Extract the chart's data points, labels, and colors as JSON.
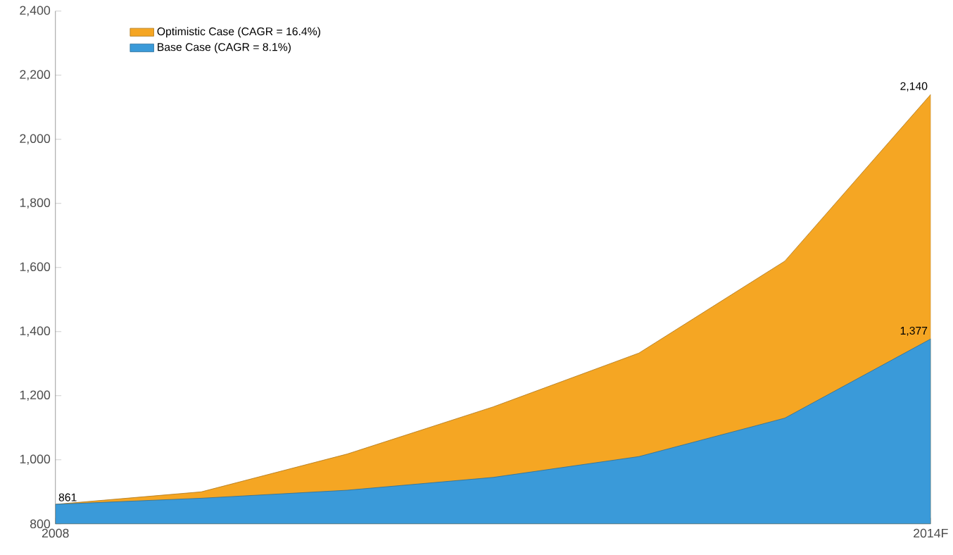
{
  "chart_data": {
    "type": "area",
    "x": [
      2008,
      2009,
      2010,
      2011,
      2012,
      2013,
      2014
    ],
    "xlim": [
      2008,
      2014
    ],
    "xticks": [
      {
        "value": 2008,
        "label": "2008"
      },
      {
        "value": 2014,
        "label": "2014F"
      }
    ],
    "ylim": [
      800,
      2400
    ],
    "yticks": [
      {
        "value": 800,
        "label": "800"
      },
      {
        "value": 1000,
        "label": "1,000"
      },
      {
        "value": 1200,
        "label": "1,200"
      },
      {
        "value": 1400,
        "label": "1,400"
      },
      {
        "value": 1600,
        "label": "1,600"
      },
      {
        "value": 1800,
        "label": "1,800"
      },
      {
        "value": 2000,
        "label": "2,000"
      },
      {
        "value": 2200,
        "label": "2,200"
      },
      {
        "value": 2400,
        "label": "2,400"
      }
    ],
    "legend": "top left",
    "grid": false,
    "series": [
      {
        "name": "Optimistic Case (CAGR = 16.4%)",
        "color": "#f5a623",
        "values": [
          861,
          900,
          1018,
          1165,
          1333,
          1620,
          2140
        ],
        "value_labels": [
          "861",
          null,
          null,
          null,
          null,
          null,
          "2,140"
        ]
      },
      {
        "name": "Base Case (CAGR = 8.1%)",
        "color": "#3a9ad9",
        "values": [
          861,
          880,
          905,
          945,
          1010,
          1130,
          1377
        ],
        "value_labels": [
          null,
          null,
          null,
          null,
          null,
          null,
          "1,377"
        ]
      }
    ]
  }
}
